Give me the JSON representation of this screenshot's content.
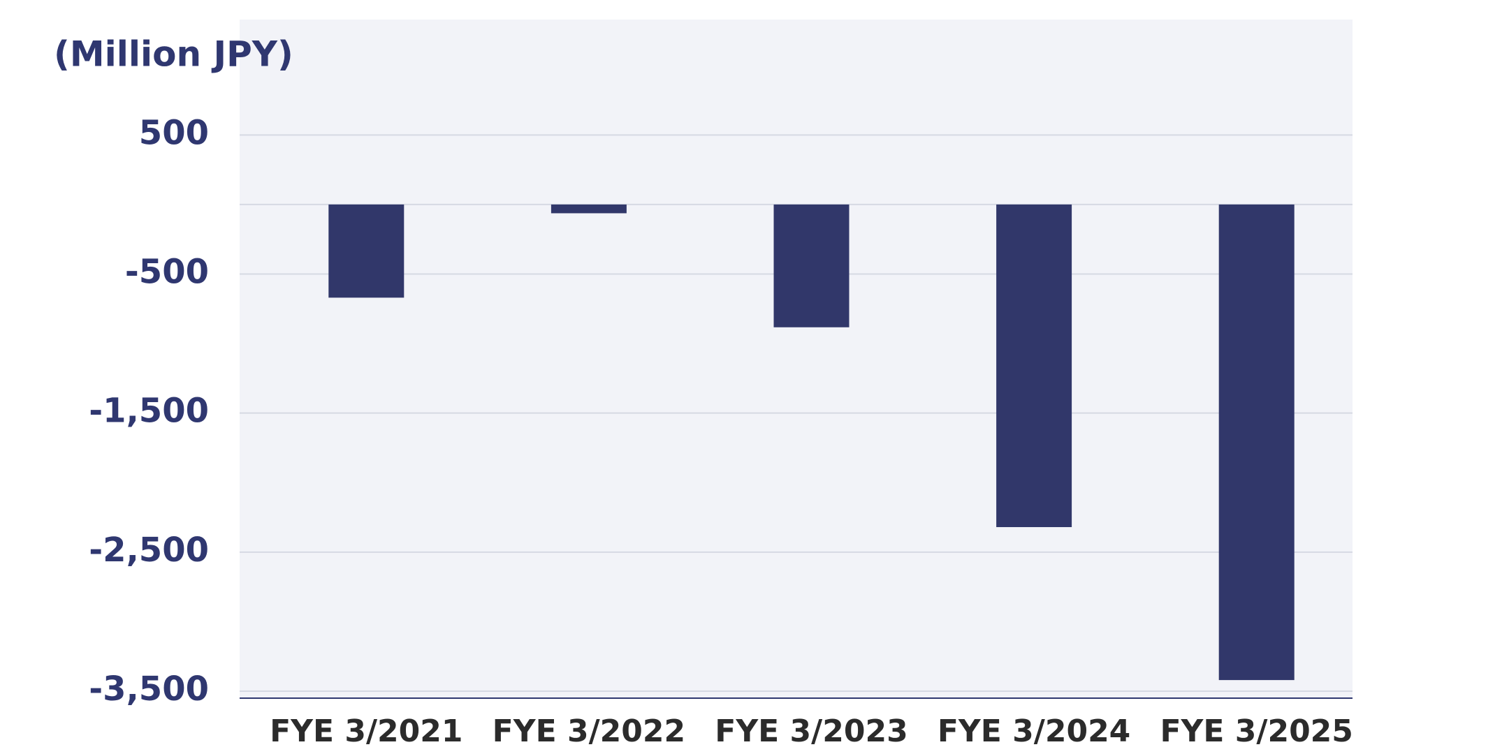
{
  "chart_data": {
    "type": "bar",
    "y_label": "(Million JPY)",
    "categories": [
      "FYE 3/2021",
      "FYE 3/2022",
      "FYE 3/2023",
      "FYE 3/2024",
      "FYE 3/2025"
    ],
    "values": [
      -670,
      -63,
      -883,
      -2320,
      -3420
    ],
    "color": "#31376a",
    "ylim": [
      -3550,
      1330
    ],
    "yticks": [
      500,
      -500,
      {
        "value": -1500,
        "label": "-1,500"
      },
      {
        "value": -2500,
        "label": "-2,500"
      },
      {
        "value": -3500,
        "label": "-3,500"
      }
    ],
    "grid": true
  }
}
